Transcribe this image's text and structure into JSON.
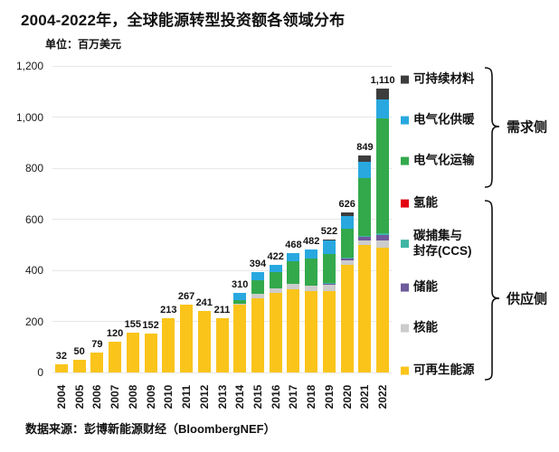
{
  "title": "2004-2022年，全球能源转型投资额各领域分布",
  "unit_label": "单位：百万美元",
  "source": "数据来源：彭博新能源财经（BloombergNEF）",
  "chart_data": {
    "type": "bar",
    "stacked": true,
    "title": "2004-2022年，全球能源转型投资额各领域分布",
    "ylabel": "百万美元",
    "xlabel": "",
    "ylim": [
      0,
      1200
    ],
    "grid": true,
    "legend_position": "right",
    "categories": [
      "2004",
      "2005",
      "2006",
      "2007",
      "2008",
      "2009",
      "2010",
      "2011",
      "2012",
      "2013",
      "2014",
      "2015",
      "2016",
      "2017",
      "2018",
      "2019",
      "2020",
      "2021",
      "2022"
    ],
    "totals": [
      32,
      50,
      79,
      120,
      155,
      152,
      213,
      267,
      241,
      211,
      310,
      394,
      422,
      468,
      482,
      522,
      626,
      849,
      1110
    ],
    "total_labels": [
      "32",
      "50",
      "79",
      "120",
      "155",
      "152",
      "213",
      "267",
      "241",
      "211",
      "310",
      "394",
      "422",
      "468",
      "482",
      "522",
      "626",
      "849",
      "1,110"
    ],
    "yticks": [
      "0",
      "200",
      "400",
      "600",
      "800",
      "1,000",
      "1,200"
    ],
    "series": [
      {
        "name": "可再生能源",
        "color": "#FAC41B",
        "values": [
          32,
          50,
          79,
          120,
          155,
          152,
          213,
          267,
          241,
          211,
          265,
          291,
          312,
          326,
          318,
          319,
          420,
          500,
          490
        ]
      },
      {
        "name": "核能",
        "color": "#CCCCCC",
        "values": [
          0,
          0,
          0,
          0,
          0,
          0,
          0,
          0,
          0,
          0,
          5,
          18,
          18,
          21,
          21,
          25,
          20,
          16,
          28
        ]
      },
      {
        "name": "储能",
        "color": "#6F5A9D",
        "values": [
          0,
          0,
          0,
          0,
          0,
          0,
          0,
          0,
          0,
          0,
          0,
          0,
          0,
          0,
          2,
          4,
          6,
          14,
          20
        ]
      },
      {
        "name": "碳捕集与封存(CCS)",
        "color": "#40B5A4",
        "values": [
          0,
          0,
          0,
          0,
          0,
          0,
          0,
          0,
          0,
          0,
          0,
          0,
          0,
          0,
          0,
          1,
          2,
          3,
          6
        ]
      },
      {
        "name": "氢能",
        "color": "#E30613",
        "values": [
          0,
          0,
          0,
          0,
          0,
          0,
          0,
          0,
          0,
          0,
          0,
          0,
          0,
          0,
          0,
          1,
          1,
          2,
          2
        ]
      },
      {
        "name": "电气化运输",
        "color": "#33A94C",
        "values": [
          0,
          0,
          0,
          0,
          0,
          0,
          0,
          0,
          0,
          0,
          12,
          53,
          64,
          89,
          106,
          112,
          115,
          225,
          450
        ]
      },
      {
        "name": "电气化供暖",
        "color": "#29A8E0",
        "values": [
          0,
          0,
          0,
          0,
          0,
          0,
          0,
          0,
          0,
          0,
          28,
          32,
          28,
          32,
          35,
          55,
          48,
          64,
          72
        ]
      },
      {
        "name": "可持续材料",
        "color": "#3D3D3D",
        "values": [
          0,
          0,
          0,
          0,
          0,
          0,
          0,
          0,
          0,
          0,
          0,
          0,
          0,
          0,
          0,
          5,
          14,
          25,
          42
        ]
      }
    ]
  },
  "legend": {
    "demand_group_label": "需求侧",
    "supply_group_label": "供应侧",
    "items": [
      {
        "label": "可持续材料",
        "color": "#3D3D3D",
        "group": "demand"
      },
      {
        "label": "电气化供暖",
        "color": "#29A8E0",
        "group": "demand"
      },
      {
        "label": "电气化运输",
        "color": "#33A94C",
        "group": "demand"
      },
      {
        "label": "氢能",
        "color": "#E30613",
        "group": "supply"
      },
      {
        "label": "碳捕集与\n封存(CCS)",
        "color": "#40B5A4",
        "group": "supply"
      },
      {
        "label": "储能",
        "color": "#6F5A9D",
        "group": "supply"
      },
      {
        "label": "核能",
        "color": "#CCCCCC",
        "group": "supply"
      },
      {
        "label": "可再生能源",
        "color": "#FAC41B",
        "group": "supply"
      }
    ]
  }
}
